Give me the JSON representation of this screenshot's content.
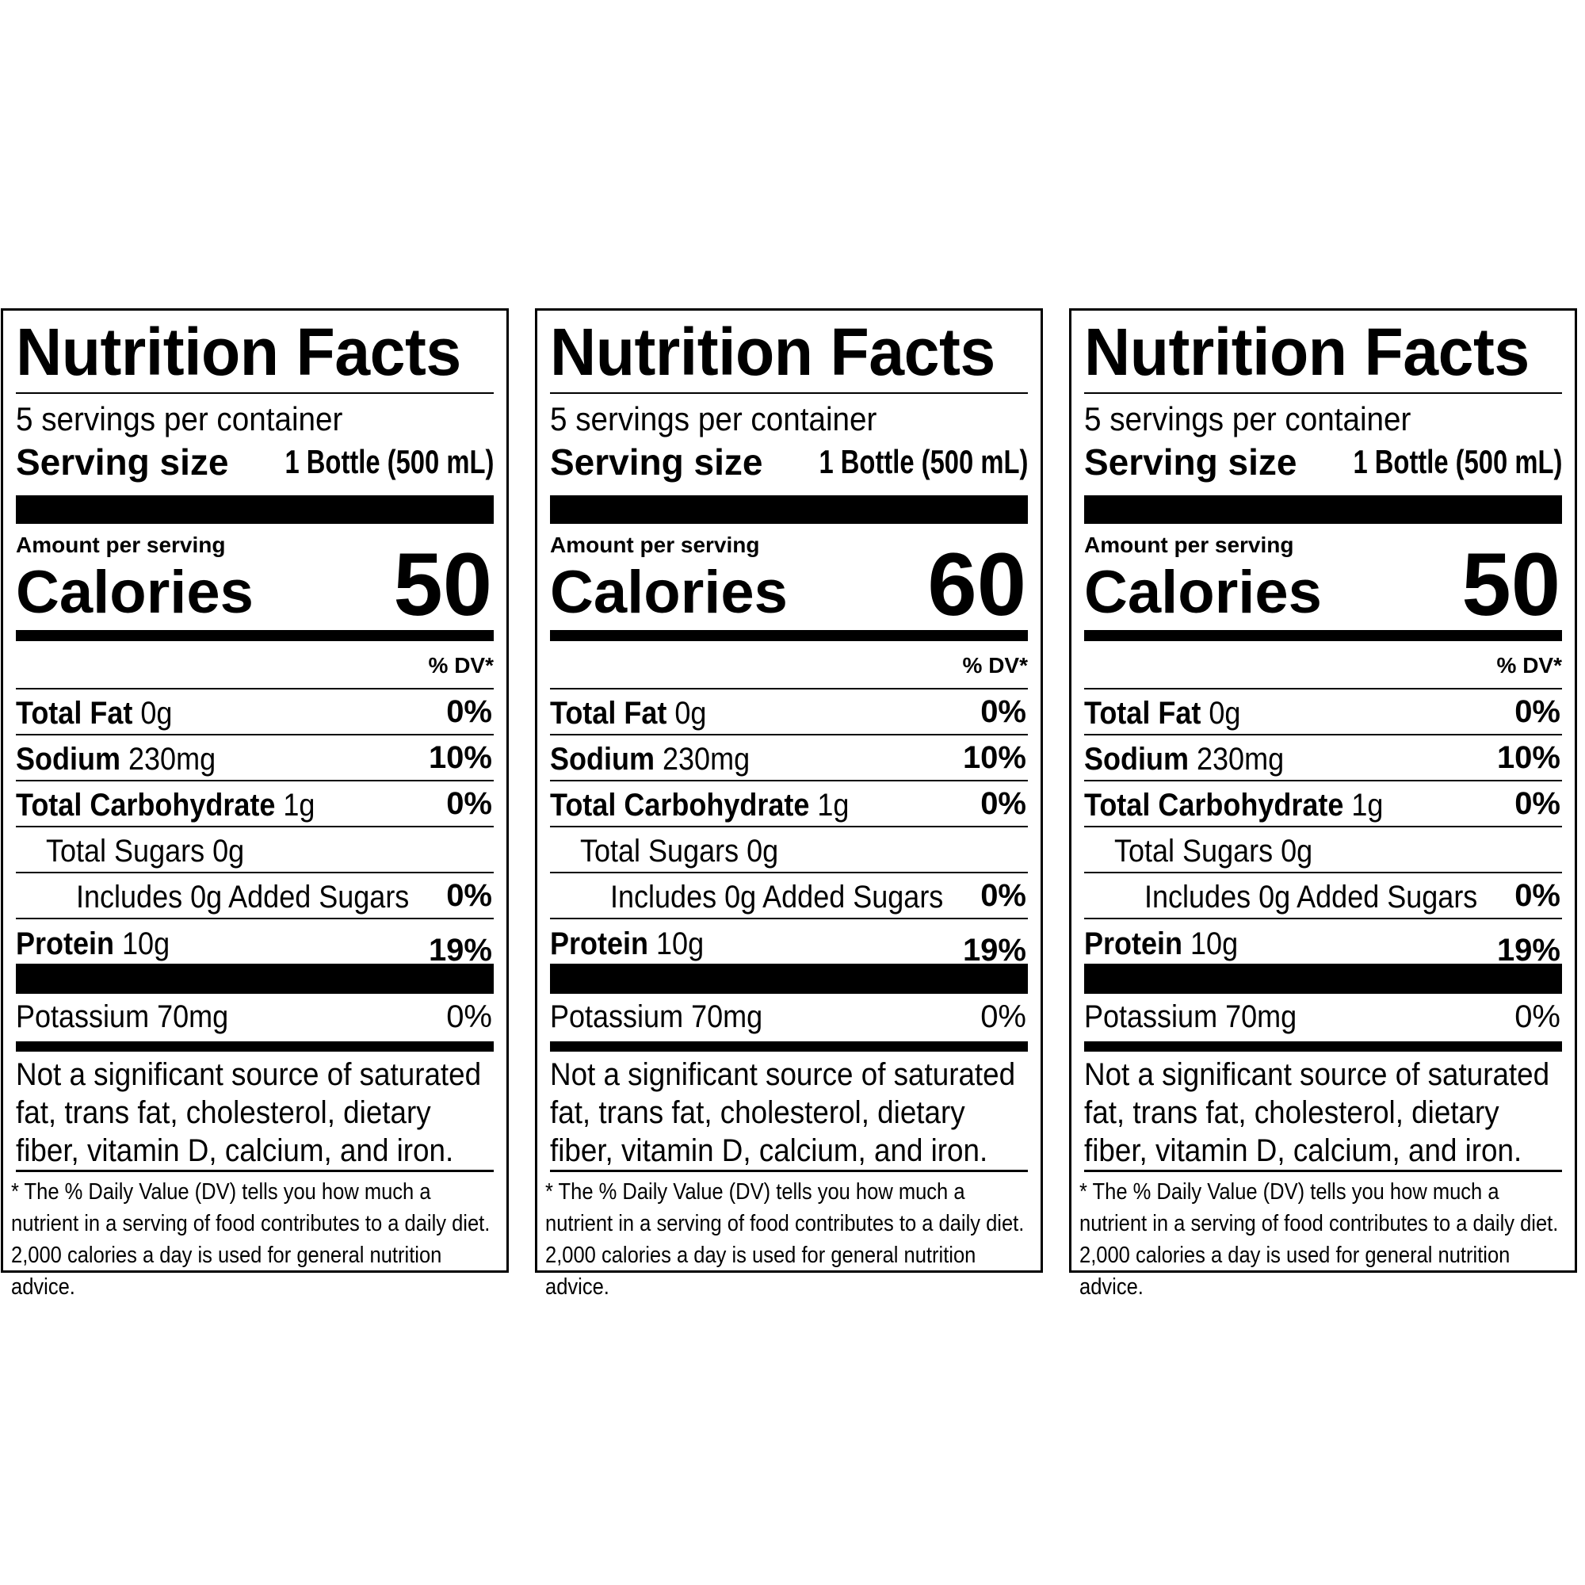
{
  "labels": [
    {
      "title": "Nutrition Facts",
      "servings_per_container": "5 servings per container",
      "serving_size_label": "Serving size",
      "serving_size_value": "1 Bottle (500 mL)",
      "amount_per_serving": "Amount per serving",
      "calories_label": "Calories",
      "calories_value": "50",
      "dv_header": "% DV*",
      "rows": [
        {
          "name": "Total Fat",
          "amount": "0g",
          "dv": "0%"
        },
        {
          "name": "Sodium",
          "amount": "230mg",
          "dv": "10%"
        },
        {
          "name": "Total Carbohydrate",
          "amount": "1g",
          "dv": "0%"
        },
        {
          "name": "Total Sugars 0g",
          "amount": "",
          "dv": ""
        },
        {
          "name": "Includes 0g Added Sugars",
          "amount": "",
          "dv": "0%"
        },
        {
          "name": "Protein",
          "amount": "10g",
          "dv": "19%"
        }
      ],
      "potassium": {
        "name": "Potassium 70mg",
        "dv": "0%"
      },
      "not_significant": "Not a significant source of saturated fat, trans fat, cholesterol, dietary fiber, vitamin D, calcium, and iron.",
      "footnote": "* The % Daily Value (DV) tells you how much a nutrient in a serving of food contributes to a daily diet. 2,000 calories a day is used for general nutrition advice."
    },
    {
      "title": "Nutrition Facts",
      "servings_per_container": "5 servings per container",
      "serving_size_label": "Serving size",
      "serving_size_value": "1 Bottle (500 mL)",
      "amount_per_serving": "Amount per serving",
      "calories_label": "Calories",
      "calories_value": "60",
      "dv_header": "% DV*",
      "rows": [
        {
          "name": "Total Fat",
          "amount": "0g",
          "dv": "0%"
        },
        {
          "name": "Sodium",
          "amount": "230mg",
          "dv": "10%"
        },
        {
          "name": "Total Carbohydrate",
          "amount": "1g",
          "dv": "0%"
        },
        {
          "name": "Total Sugars 0g",
          "amount": "",
          "dv": ""
        },
        {
          "name": "Includes 0g Added Sugars",
          "amount": "",
          "dv": "0%"
        },
        {
          "name": "Protein",
          "amount": "10g",
          "dv": "19%"
        }
      ],
      "potassium": {
        "name": "Potassium 70mg",
        "dv": "0%"
      },
      "not_significant": "Not a significant source of saturated fat, trans fat, cholesterol, dietary fiber, vitamin D, calcium, and iron.",
      "footnote": "* The % Daily Value (DV) tells you how much a nutrient in a serving of food contributes to a daily diet. 2,000 calories a day is used for general nutrition advice."
    },
    {
      "title": "Nutrition Facts",
      "servings_per_container": "5 servings per container",
      "serving_size_label": "Serving size",
      "serving_size_value": "1 Bottle (500 mL)",
      "amount_per_serving": "Amount per serving",
      "calories_label": "Calories",
      "calories_value": "50",
      "dv_header": "% DV*",
      "rows": [
        {
          "name": "Total Fat",
          "amount": "0g",
          "dv": "0%"
        },
        {
          "name": "Sodium",
          "amount": "230mg",
          "dv": "10%"
        },
        {
          "name": "Total Carbohydrate",
          "amount": "1g",
          "dv": "0%"
        },
        {
          "name": "Total Sugars 0g",
          "amount": "",
          "dv": ""
        },
        {
          "name": "Includes 0g Added Sugars",
          "amount": "",
          "dv": "0%"
        },
        {
          "name": "Protein",
          "amount": "10g",
          "dv": "19%"
        }
      ],
      "potassium": {
        "name": "Potassium 70mg",
        "dv": "0%"
      },
      "not_significant": "Not a significant source of saturated fat, trans fat, cholesterol, dietary fiber, vitamin D, calcium, and iron.",
      "footnote": "* The % Daily Value (DV) tells you how much a nutrient in a serving of food contributes to a daily diet. 2,000 calories a day is used for general nutrition advice."
    }
  ]
}
